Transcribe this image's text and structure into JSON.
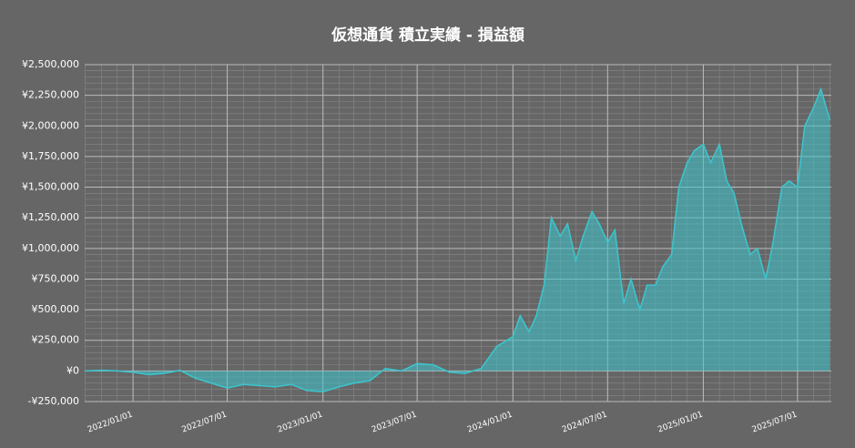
{
  "chart_data": {
    "type": "area",
    "title": "仮想通貨 積立実績 - 損益額",
    "color": "#3cc4cc",
    "grid": true,
    "xlim": [
      "2021/09/30",
      "2025/09/04"
    ],
    "xticks": [
      "2022/01/01",
      "2022/07/01",
      "2023/01/01",
      "2023/07/01",
      "2024/01/01",
      "2024/07/01",
      "2025/01/01",
      "2025/07/01"
    ],
    "ylim": [
      -250000,
      2500000
    ],
    "yticks": [
      {
        "value": -250000,
        "label": "-¥250,000"
      },
      {
        "value": 0,
        "label": "¥0"
      },
      {
        "value": 250000,
        "label": "¥250,000"
      },
      {
        "value": 500000,
        "label": "¥500,000"
      },
      {
        "value": 750000,
        "label": "¥750,000"
      },
      {
        "value": 1000000,
        "label": "¥1,000,000"
      },
      {
        "value": 1250000,
        "label": "¥1,250,000"
      },
      {
        "value": 1500000,
        "label": "¥1,500,000"
      },
      {
        "value": 1750000,
        "label": "¥1,750,000"
      },
      {
        "value": 2000000,
        "label": "¥2,000,000"
      },
      {
        "value": 2250000,
        "label": "¥2,250,000"
      },
      {
        "value": 2500000,
        "label": "¥2,500,000"
      }
    ],
    "x": [
      "2021/10/01",
      "2021/11/01",
      "2021/12/01",
      "2022/01/01",
      "2022/02/01",
      "2022/03/01",
      "2022/04/01",
      "2022/05/01",
      "2022/06/01",
      "2022/07/01",
      "2022/08/01",
      "2022/09/01",
      "2022/10/01",
      "2022/11/01",
      "2022/12/01",
      "2023/01/01",
      "2023/02/01",
      "2023/03/01",
      "2023/04/01",
      "2023/05/01",
      "2023/06/01",
      "2023/07/01",
      "2023/08/01",
      "2023/09/01",
      "2023/10/01",
      "2023/11/01",
      "2023/12/01",
      "2024/01/01",
      "2024/01/15",
      "2024/02/01",
      "2024/02/15",
      "2024/03/01",
      "2024/03/15",
      "2024/04/01",
      "2024/04/15",
      "2024/05/01",
      "2024/05/15",
      "2024/06/01",
      "2024/06/15",
      "2024/07/01",
      "2024/07/15",
      "2024/08/01",
      "2024/08/15",
      "2024/09/01",
      "2024/09/15",
      "2024/10/01",
      "2024/10/15",
      "2024/11/01",
      "2024/11/15",
      "2024/12/01",
      "2024/12/15",
      "2025/01/01",
      "2025/01/15",
      "2025/02/01",
      "2025/02/15",
      "2025/03/01",
      "2025/03/15",
      "2025/04/01",
      "2025/04/15",
      "2025/05/01",
      "2025/05/15",
      "2025/06/01",
      "2025/06/15",
      "2025/07/01",
      "2025/07/15",
      "2025/08/01",
      "2025/08/15",
      "2025/09/01"
    ],
    "values": [
      0,
      5000,
      0,
      -10000,
      -30000,
      -20000,
      5000,
      -60000,
      -100000,
      -140000,
      -110000,
      -120000,
      -130000,
      -110000,
      -160000,
      -170000,
      -130000,
      -100000,
      -80000,
      20000,
      0,
      60000,
      50000,
      -10000,
      -20000,
      20000,
      200000,
      280000,
      450000,
      320000,
      450000,
      700000,
      1250000,
      1100000,
      1200000,
      900000,
      1100000,
      1300000,
      1200000,
      1050000,
      1150000,
      550000,
      750000,
      500000,
      700000,
      700000,
      850000,
      950000,
      1500000,
      1700000,
      1800000,
      1850000,
      1700000,
      1850000,
      1550000,
      1450000,
      1200000,
      950000,
      1000000,
      750000,
      1050000,
      1500000,
      1550000,
      1500000,
      2000000,
      2150000,
      2300000,
      2050000
    ]
  }
}
